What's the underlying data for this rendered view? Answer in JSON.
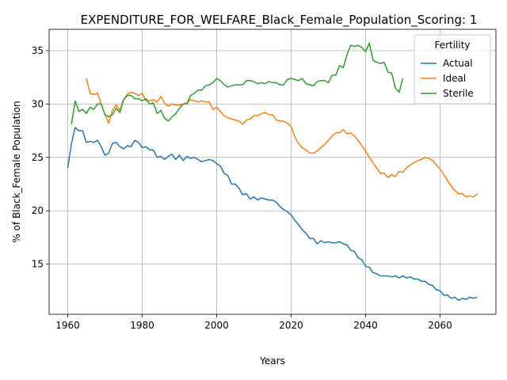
{
  "chart_data": {
    "type": "line",
    "title": "EXPENDITURE_FOR_WELFARE_Black_Female_Population_Scoring: 1",
    "xlabel": "Years",
    "ylabel": "% of Black_Female Population",
    "xlim": [
      1955,
      2075
    ],
    "ylim": [
      10.3,
      37.0
    ],
    "xticks": [
      1960,
      1980,
      2000,
      2020,
      2040,
      2060
    ],
    "yticks": [
      15,
      20,
      25,
      30,
      35
    ],
    "grid": true,
    "legend": {
      "title": "Fertility",
      "placement": "top-right"
    },
    "series": [
      {
        "name": "Actual",
        "color": "#1f77b4",
        "points": [
          [
            1960,
            24.0
          ],
          [
            1961,
            26.3
          ],
          [
            1962,
            27.8
          ],
          [
            1963,
            27.5
          ],
          [
            1964,
            27.5
          ],
          [
            1965,
            26.4
          ],
          [
            1966,
            26.5
          ],
          [
            1967,
            26.4
          ],
          [
            1968,
            26.6
          ],
          [
            1969,
            26.0
          ],
          [
            1970,
            25.2
          ],
          [
            1971,
            25.4
          ],
          [
            1972,
            26.3
          ],
          [
            1973,
            26.4
          ],
          [
            1974,
            26.0
          ],
          [
            1975,
            25.8
          ],
          [
            1976,
            26.1
          ],
          [
            1977,
            26.0
          ],
          [
            1978,
            26.6
          ],
          [
            1979,
            26.4
          ],
          [
            1980,
            25.9
          ],
          [
            1981,
            26.0
          ],
          [
            1982,
            25.7
          ],
          [
            1983,
            25.7
          ],
          [
            1984,
            25.0
          ],
          [
            1985,
            25.1
          ],
          [
            1986,
            24.8
          ],
          [
            1987,
            25.1
          ],
          [
            1988,
            25.3
          ],
          [
            1989,
            24.8
          ],
          [
            1990,
            25.2
          ],
          [
            1991,
            24.7
          ],
          [
            1992,
            25.1
          ],
          [
            1993,
            24.9
          ],
          [
            1994,
            25.0
          ],
          [
            1995,
            24.8
          ],
          [
            1996,
            24.6
          ],
          [
            1997,
            24.7
          ],
          [
            1998,
            24.8
          ],
          [
            1999,
            24.7
          ],
          [
            2000,
            24.4
          ],
          [
            2001,
            24.2
          ],
          [
            2002,
            23.5
          ],
          [
            2003,
            23.3
          ],
          [
            2004,
            22.5
          ],
          [
            2005,
            22.5
          ],
          [
            2006,
            22.1
          ],
          [
            2007,
            21.5
          ],
          [
            2008,
            21.6
          ],
          [
            2009,
            21.1
          ],
          [
            2010,
            21.3
          ],
          [
            2011,
            21.0
          ],
          [
            2012,
            21.2
          ],
          [
            2013,
            21.1
          ],
          [
            2014,
            21.0
          ],
          [
            2015,
            21.0
          ],
          [
            2016,
            20.8
          ],
          [
            2017,
            20.4
          ],
          [
            2018,
            20.1
          ],
          [
            2019,
            19.9
          ],
          [
            2020,
            19.6
          ],
          [
            2021,
            19.1
          ],
          [
            2022,
            18.7
          ],
          [
            2023,
            18.2
          ],
          [
            2024,
            17.9
          ],
          [
            2025,
            17.4
          ],
          [
            2026,
            17.4
          ],
          [
            2027,
            16.9
          ],
          [
            2028,
            17.2
          ],
          [
            2029,
            17.0
          ],
          [
            2030,
            17.1
          ],
          [
            2031,
            17.0
          ],
          [
            2032,
            17.0
          ],
          [
            2033,
            17.1
          ],
          [
            2034,
            16.9
          ],
          [
            2035,
            16.8
          ],
          [
            2036,
            16.3
          ],
          [
            2037,
            16.2
          ],
          [
            2038,
            15.6
          ],
          [
            2039,
            15.4
          ],
          [
            2040,
            14.8
          ],
          [
            2041,
            14.7
          ],
          [
            2042,
            14.2
          ],
          [
            2043,
            14.1
          ],
          [
            2044,
            13.9
          ],
          [
            2045,
            13.9
          ],
          [
            2046,
            13.9
          ],
          [
            2047,
            13.8
          ],
          [
            2048,
            13.9
          ],
          [
            2049,
            13.7
          ],
          [
            2050,
            13.9
          ],
          [
            2051,
            13.7
          ],
          [
            2052,
            13.8
          ],
          [
            2053,
            13.6
          ],
          [
            2054,
            13.6
          ],
          [
            2055,
            13.4
          ],
          [
            2056,
            13.4
          ],
          [
            2057,
            13.1
          ],
          [
            2058,
            13.0
          ],
          [
            2059,
            12.6
          ],
          [
            2060,
            12.5
          ],
          [
            2061,
            12.1
          ],
          [
            2062,
            12.1
          ],
          [
            2063,
            11.8
          ],
          [
            2064,
            11.9
          ],
          [
            2065,
            11.6
          ],
          [
            2066,
            11.8
          ],
          [
            2067,
            11.7
          ],
          [
            2068,
            11.9
          ],
          [
            2069,
            11.8
          ],
          [
            2070,
            11.9
          ]
        ]
      },
      {
        "name": "Ideal",
        "color": "#ff7f0e",
        "points": [
          [
            1965,
            32.4
          ],
          [
            1966,
            31.0
          ],
          [
            1967,
            30.9
          ],
          [
            1968,
            31.0
          ],
          [
            1969,
            30.0
          ],
          [
            1970,
            29.0
          ],
          [
            1971,
            28.2
          ],
          [
            1972,
            29.4
          ],
          [
            1973,
            29.9
          ],
          [
            1974,
            29.4
          ],
          [
            1975,
            30.4
          ],
          [
            1976,
            30.9
          ],
          [
            1977,
            31.1
          ],
          [
            1978,
            31.0
          ],
          [
            1979,
            30.8
          ],
          [
            1980,
            31.0
          ],
          [
            1981,
            30.3
          ],
          [
            1982,
            30.3
          ],
          [
            1983,
            30.4
          ],
          [
            1984,
            30.2
          ],
          [
            1985,
            30.7
          ],
          [
            1986,
            30.1
          ],
          [
            1987,
            29.8
          ],
          [
            1988,
            30.0
          ],
          [
            1989,
            29.9
          ],
          [
            1990,
            29.9
          ],
          [
            1991,
            30.0
          ],
          [
            1992,
            30.1
          ],
          [
            1993,
            30.4
          ],
          [
            1994,
            30.3
          ],
          [
            1995,
            30.2
          ],
          [
            1996,
            30.3
          ],
          [
            1997,
            30.2
          ],
          [
            1998,
            30.2
          ],
          [
            1999,
            29.5
          ],
          [
            2000,
            29.7
          ],
          [
            2001,
            29.3
          ],
          [
            2002,
            28.9
          ],
          [
            2003,
            28.7
          ],
          [
            2004,
            28.6
          ],
          [
            2005,
            28.5
          ],
          [
            2006,
            28.4
          ],
          [
            2007,
            28.1
          ],
          [
            2008,
            28.5
          ],
          [
            2009,
            28.6
          ],
          [
            2010,
            28.9
          ],
          [
            2011,
            28.9
          ],
          [
            2012,
            29.1
          ],
          [
            2013,
            29.2
          ],
          [
            2014,
            29.0
          ],
          [
            2015,
            29.0
          ],
          [
            2016,
            28.5
          ],
          [
            2017,
            28.4
          ],
          [
            2018,
            28.4
          ],
          [
            2019,
            28.2
          ],
          [
            2020,
            27.9
          ],
          [
            2021,
            26.9
          ],
          [
            2022,
            26.3
          ],
          [
            2023,
            25.9
          ],
          [
            2024,
            25.7
          ],
          [
            2025,
            25.4
          ],
          [
            2026,
            25.4
          ],
          [
            2027,
            25.6
          ],
          [
            2028,
            25.9
          ],
          [
            2029,
            26.2
          ],
          [
            2030,
            26.6
          ],
          [
            2031,
            27.0
          ],
          [
            2032,
            27.3
          ],
          [
            2033,
            27.3
          ],
          [
            2034,
            27.6
          ],
          [
            2035,
            27.2
          ],
          [
            2036,
            27.3
          ],
          [
            2037,
            27.0
          ],
          [
            2038,
            26.6
          ],
          [
            2039,
            26.1
          ],
          [
            2040,
            25.6
          ],
          [
            2041,
            25.0
          ],
          [
            2042,
            24.5
          ],
          [
            2043,
            24.0
          ],
          [
            2044,
            23.5
          ],
          [
            2045,
            23.5
          ],
          [
            2046,
            23.1
          ],
          [
            2047,
            23.4
          ],
          [
            2048,
            23.2
          ],
          [
            2049,
            23.7
          ],
          [
            2050,
            23.6
          ],
          [
            2051,
            24.0
          ],
          [
            2052,
            24.3
          ],
          [
            2053,
            24.5
          ],
          [
            2054,
            24.7
          ],
          [
            2055,
            24.8
          ],
          [
            2056,
            25.0
          ],
          [
            2057,
            24.9
          ],
          [
            2058,
            24.7
          ],
          [
            2059,
            24.3
          ],
          [
            2060,
            23.9
          ],
          [
            2061,
            23.4
          ],
          [
            2062,
            22.8
          ],
          [
            2063,
            22.3
          ],
          [
            2064,
            21.9
          ],
          [
            2065,
            21.6
          ],
          [
            2066,
            21.6
          ],
          [
            2067,
            21.3
          ],
          [
            2068,
            21.4
          ],
          [
            2069,
            21.3
          ],
          [
            2070,
            21.6
          ]
        ]
      },
      {
        "name": "Sterile",
        "color": "#2ca02c",
        "points": [
          [
            1961,
            28.1
          ],
          [
            1962,
            30.3
          ],
          [
            1963,
            29.3
          ],
          [
            1964,
            29.5
          ],
          [
            1965,
            29.1
          ],
          [
            1966,
            29.7
          ],
          [
            1967,
            29.5
          ],
          [
            1968,
            30.0
          ],
          [
            1969,
            30.0
          ],
          [
            1970,
            29.0
          ],
          [
            1971,
            28.8
          ],
          [
            1972,
            29.0
          ],
          [
            1973,
            29.6
          ],
          [
            1974,
            29.2
          ],
          [
            1975,
            30.4
          ],
          [
            1976,
            30.8
          ],
          [
            1977,
            30.8
          ],
          [
            1978,
            30.5
          ],
          [
            1979,
            30.5
          ],
          [
            1980,
            30.3
          ],
          [
            1981,
            30.5
          ],
          [
            1982,
            30.0
          ],
          [
            1983,
            30.1
          ],
          [
            1984,
            29.1
          ],
          [
            1985,
            29.4
          ],
          [
            1986,
            28.7
          ],
          [
            1987,
            28.4
          ],
          [
            1988,
            28.8
          ],
          [
            1989,
            29.1
          ],
          [
            1990,
            29.6
          ],
          [
            1991,
            30.0
          ],
          [
            1992,
            30.0
          ],
          [
            1993,
            30.8
          ],
          [
            1994,
            31.0
          ],
          [
            1995,
            31.3
          ],
          [
            1996,
            31.3
          ],
          [
            1997,
            31.7
          ],
          [
            1998,
            31.8
          ],
          [
            1999,
            32.0
          ],
          [
            2000,
            32.4
          ],
          [
            2001,
            32.2
          ],
          [
            2002,
            31.8
          ],
          [
            2003,
            31.6
          ],
          [
            2004,
            31.7
          ],
          [
            2005,
            31.8
          ],
          [
            2006,
            31.8
          ],
          [
            2007,
            31.8
          ],
          [
            2008,
            32.2
          ],
          [
            2009,
            32.2
          ],
          [
            2010,
            32.1
          ],
          [
            2011,
            31.9
          ],
          [
            2012,
            32.0
          ],
          [
            2013,
            31.9
          ],
          [
            2014,
            32.1
          ],
          [
            2015,
            32.0
          ],
          [
            2016,
            32.0
          ],
          [
            2017,
            31.8
          ],
          [
            2018,
            31.8
          ],
          [
            2019,
            32.3
          ],
          [
            2020,
            32.4
          ],
          [
            2021,
            32.3
          ],
          [
            2022,
            32.2
          ],
          [
            2023,
            32.4
          ],
          [
            2024,
            31.9
          ],
          [
            2025,
            31.8
          ],
          [
            2026,
            31.7
          ],
          [
            2027,
            32.1
          ],
          [
            2028,
            32.2
          ],
          [
            2029,
            32.2
          ],
          [
            2030,
            32.0
          ],
          [
            2031,
            32.7
          ],
          [
            2032,
            32.7
          ],
          [
            2033,
            33.6
          ],
          [
            2034,
            33.4
          ],
          [
            2035,
            34.6
          ],
          [
            2036,
            35.5
          ],
          [
            2037,
            35.4
          ],
          [
            2038,
            35.5
          ],
          [
            2039,
            35.3
          ],
          [
            2040,
            34.9
          ],
          [
            2041,
            35.7
          ],
          [
            2042,
            34.1
          ],
          [
            2043,
            33.9
          ],
          [
            2044,
            33.8
          ],
          [
            2045,
            33.9
          ],
          [
            2046,
            33.0
          ],
          [
            2047,
            32.9
          ],
          [
            2048,
            31.5
          ],
          [
            2049,
            31.1
          ],
          [
            2050,
            32.4
          ]
        ]
      }
    ]
  }
}
